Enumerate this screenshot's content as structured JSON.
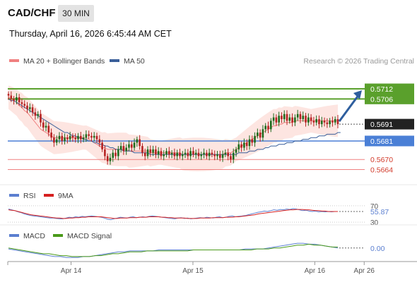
{
  "header": {
    "symbol": "CAD/CHF",
    "timeframe": "30 MIN",
    "timestamp": "Thursday, April 16, 2026 6:45:44 AM CET"
  },
  "legend": {
    "ma20": "MA 20 + Bollinger Bands",
    "ma50": "MA 50",
    "copyright": "Research © 2026 Trading Central"
  },
  "colors": {
    "ma20": "#f08080",
    "ma50": "#3a5f9a",
    "band_fill": "#fde0dc",
    "resistance": "#5aa02c",
    "pivot": "#4a7fd6",
    "support": "#f08080",
    "candle_up": "#1e6b1e",
    "candle_down": "#b52222",
    "rsi": "#5b7fd0",
    "rsi_ma": "#d62020",
    "macd": "#5b7fd0",
    "macd_signal": "#4a9a1a",
    "arrow": "#2e5e9e"
  },
  "chart_data": [
    {
      "type": "candlestick",
      "name": "price",
      "x_labels": [
        "Apr 14",
        "Apr 15",
        "Apr 16",
        "Apr 26"
      ],
      "ylim": [
        0.5655,
        0.5725
      ],
      "levels": [
        {
          "label": "0.5712",
          "value": 0.5712,
          "kind": "resistance"
        },
        {
          "label": "0.5706",
          "value": 0.5706,
          "kind": "resistance"
        },
        {
          "label": "0.5691",
          "value": 0.5691,
          "kind": "last"
        },
        {
          "label": "0.5681",
          "value": 0.5681,
          "kind": "pivot"
        },
        {
          "label": "0.5670",
          "value": 0.567,
          "kind": "support"
        },
        {
          "label": "0.5664",
          "value": 0.5664,
          "kind": "support"
        }
      ],
      "close": [
        0.5708,
        0.5706,
        0.5705,
        0.5707,
        0.5704,
        0.5703,
        0.5702,
        0.57,
        0.5701,
        0.5698,
        0.5696,
        0.5697,
        0.5692,
        0.5689,
        0.569,
        0.5686,
        0.5683,
        0.568,
        0.5682,
        0.5684,
        0.5681,
        0.5683,
        0.5682,
        0.5684,
        0.5683,
        0.5682,
        0.5684,
        0.5682,
        0.5683,
        0.5685,
        0.5684,
        0.5683,
        0.5684,
        0.5682,
        0.568,
        0.5676,
        0.5672,
        0.5669,
        0.5671,
        0.5674,
        0.5672,
        0.5676,
        0.5678,
        0.5675,
        0.5677,
        0.5679,
        0.5677,
        0.568,
        0.5682,
        0.5678,
        0.5674,
        0.5672,
        0.5676,
        0.5674,
        0.5676,
        0.5673,
        0.5675,
        0.5672,
        0.5673,
        0.5675,
        0.5673,
        0.5674,
        0.5672,
        0.5674,
        0.5672,
        0.5673,
        0.5674,
        0.5672,
        0.5675,
        0.5673,
        0.5674,
        0.5672,
        0.5673,
        0.5674,
        0.5672,
        0.5674,
        0.5673,
        0.5672,
        0.5673,
        0.5671,
        0.5673,
        0.5674,
        0.5672,
        0.567,
        0.5674,
        0.5676,
        0.5679,
        0.5677,
        0.568,
        0.5678,
        0.5682,
        0.568,
        0.5684,
        0.5686,
        0.5683,
        0.5688,
        0.569,
        0.5688,
        0.5693,
        0.5695,
        0.5692,
        0.5696,
        0.5694,
        0.5697,
        0.5693,
        0.5695,
        0.5692,
        0.5695,
        0.5697,
        0.5694,
        0.5696,
        0.5692,
        0.5695,
        0.5693,
        0.5692,
        0.5694,
        0.5691,
        0.5693,
        0.5692,
        0.5691,
        0.5693,
        0.5692,
        0.5694,
        0.5691
      ],
      "ma20": [
        0.5707,
        0.5706,
        0.5705,
        0.5704,
        0.5702,
        0.5701,
        0.5699,
        0.5698,
        0.5696,
        0.5694,
        0.5692,
        0.569,
        0.5688,
        0.5687,
        0.5686,
        0.5685,
        0.5684,
        0.5683,
        0.5683,
        0.5683,
        0.5683,
        0.5683,
        0.5683,
        0.5683,
        0.5683,
        0.5683,
        0.5683,
        0.5683,
        0.5683,
        0.5683,
        0.5682,
        0.5681,
        0.568,
        0.5679,
        0.5678,
        0.5677,
        0.5677,
        0.5676,
        0.5676,
        0.5676,
        0.5676,
        0.5676,
        0.5676,
        0.5676,
        0.5676,
        0.5675,
        0.5675,
        0.5675,
        0.5675,
        0.5675,
        0.5675,
        0.5675,
        0.5675,
        0.5674,
        0.5674,
        0.5674,
        0.5674,
        0.5674,
        0.5674,
        0.5674,
        0.5674,
        0.5674,
        0.5674,
        0.5674,
        0.5674,
        0.5673,
        0.5673,
        0.5673,
        0.5673,
        0.5673,
        0.5673,
        0.5673,
        0.5673,
        0.5673,
        0.5673,
        0.5673,
        0.5673,
        0.5673,
        0.5673,
        0.5673,
        0.5673,
        0.5674,
        0.5674,
        0.5674,
        0.5675,
        0.5676,
        0.5677,
        0.5678,
        0.5679,
        0.568,
        0.5681,
        0.5682,
        0.5683,
        0.5684,
        0.5685,
        0.5686,
        0.5687,
        0.5688,
        0.5689,
        0.569,
        0.569,
        0.5691,
        0.5691,
        0.5692,
        0.5692,
        0.5692,
        0.5692,
        0.5693,
        0.5693,
        0.5693,
        0.5693,
        0.5693,
        0.5693,
        0.5693,
        0.5693,
        0.5693,
        0.5693,
        0.5693,
        0.5693,
        0.5693,
        0.5693,
        0.5693,
        0.5693,
        0.5693
      ],
      "ma50": [
        0.5706,
        0.5705,
        0.5705,
        0.5704,
        0.5703,
        0.5702,
        0.5701,
        0.57,
        0.5699,
        0.5698,
        0.5697,
        0.5696,
        0.5695,
        0.5694,
        0.5693,
        0.5692,
        0.5691,
        0.569,
        0.5689,
        0.5688,
        0.5687,
        0.5686,
        0.5686,
        0.5685,
        0.5684,
        0.5684,
        0.5683,
        0.5683,
        0.5682,
        0.5682,
        0.5681,
        0.5681,
        0.568,
        0.568,
        0.5679,
        0.5679,
        0.5678,
        0.5678,
        0.5677,
        0.5677,
        0.5676,
        0.5676,
        0.5676,
        0.5675,
        0.5675,
        0.5675,
        0.5675,
        0.5674,
        0.5674,
        0.5674,
        0.5674,
        0.5674,
        0.5674,
        0.5673,
        0.5673,
        0.5673,
        0.5673,
        0.5673,
        0.5673,
        0.5673,
        0.5673,
        0.5673,
        0.5673,
        0.5673,
        0.5673,
        0.5673,
        0.5673,
        0.5673,
        0.5673,
        0.5673,
        0.5673,
        0.5673,
        0.5673,
        0.5673,
        0.5673,
        0.5673,
        0.5673,
        0.5673,
        0.5673,
        0.5673,
        0.5673,
        0.5673,
        0.5673,
        0.5673,
        0.5673,
        0.5673,
        0.5674,
        0.5674,
        0.5674,
        0.5674,
        0.5675,
        0.5675,
        0.5675,
        0.5676,
        0.5676,
        0.5676,
        0.5677,
        0.5677,
        0.5678,
        0.5678,
        0.5678,
        0.5679,
        0.5679,
        0.5679,
        0.568,
        0.568,
        0.568,
        0.5681,
        0.5681,
        0.5681,
        0.5682,
        0.5682,
        0.5682,
        0.5683,
        0.5683,
        0.5683,
        0.5684,
        0.5684,
        0.5684,
        0.5685,
        0.5685,
        0.5685,
        0.5685,
        0.5686,
        0.5686
      ]
    },
    {
      "type": "line",
      "name": "RSI",
      "legend": [
        "RSI",
        "9MA"
      ],
      "ylim": [
        25,
        80
      ],
      "levels": [
        70,
        30
      ],
      "tick_labels": [
        "70",
        "30"
      ],
      "current_label": "55.87",
      "series": [
        {
          "name": "RSI",
          "values": [
            62,
            60,
            58,
            55,
            53,
            50,
            48,
            46,
            45,
            44,
            43,
            42,
            41,
            40,
            40,
            39,
            38,
            38,
            40,
            42,
            41,
            43,
            42,
            44,
            43,
            44,
            45,
            44,
            43,
            42,
            40,
            37,
            36,
            38,
            40,
            42,
            41,
            40,
            42,
            43,
            41,
            42,
            43,
            42,
            44,
            45,
            44,
            43,
            42,
            41,
            40,
            39,
            38,
            40,
            41,
            39,
            40,
            38,
            39,
            40,
            41,
            40,
            42,
            41,
            40,
            42,
            43,
            41,
            42,
            44,
            45,
            43,
            44,
            45,
            46,
            48,
            50,
            52,
            54,
            55,
            57,
            56,
            58,
            60,
            59,
            61,
            60,
            62,
            61,
            63,
            62,
            60,
            58,
            59,
            57,
            56,
            57,
            55,
            56,
            55,
            56,
            55,
            56,
            56
          ]
        },
        {
          "name": "9MA",
          "values": [
            60,
            59,
            58,
            56,
            54,
            52,
            50,
            48,
            47,
            46,
            45,
            44,
            43,
            42,
            41,
            40,
            40,
            39,
            39,
            40,
            40,
            41,
            41,
            42,
            42,
            43,
            43,
            43,
            43,
            43,
            42,
            41,
            40,
            39,
            39,
            40,
            40,
            40,
            41,
            41,
            41,
            42,
            42,
            42,
            43,
            43,
            43,
            43,
            42,
            42,
            41,
            41,
            40,
            40,
            40,
            40,
            39,
            39,
            39,
            39,
            40,
            40,
            40,
            40,
            41,
            41,
            41,
            41,
            42,
            42,
            42,
            43,
            43,
            44,
            45,
            46,
            47,
            48,
            50,
            51,
            52,
            53,
            54,
            55,
            56,
            57,
            58,
            59,
            60,
            60,
            61,
            61,
            61,
            60,
            60,
            59,
            58,
            58,
            57,
            57,
            56,
            56,
            56,
            56
          ]
        }
      ]
    },
    {
      "type": "line",
      "name": "MACD",
      "legend": [
        "MACD",
        "MACD Signal"
      ],
      "ylim": [
        -0.0012,
        0.0008
      ],
      "current_label": "0.00",
      "series": [
        {
          "name": "MACD",
          "values": [
            -0.0001,
            -0.0002,
            -0.0003,
            -0.0004,
            -0.0005,
            -0.0006,
            -0.0007,
            -0.0008,
            -0.0009,
            -0.0009,
            -0.001,
            -0.001,
            -0.001,
            -0.0009,
            -0.0009,
            -0.0008,
            -0.0007,
            -0.0006,
            -0.0005,
            -0.0004,
            -0.0004,
            -0.0003,
            -0.0003,
            -0.0003,
            -0.0003,
            -0.0003,
            -0.0002,
            -0.0002,
            -0.0002,
            -0.0002,
            -0.0002,
            -0.0002,
            -0.0002,
            -0.0002,
            -0.0002,
            -0.0002,
            -0.0002,
            -0.0002,
            -0.0002,
            -0.0002,
            -0.0002,
            -0.0001,
            -0.0001,
            -0.0001,
            -0.0001,
            0.0,
            0.0001,
            0.0002,
            0.0003,
            0.0004,
            0.0005,
            0.0005,
            0.0004,
            0.0004,
            0.0003,
            0.0002,
            0.0001,
            0.0
          ]
        },
        {
          "name": "MACD Signal",
          "values": [
            0.0,
            -0.0001,
            -0.0002,
            -0.0003,
            -0.0004,
            -0.0005,
            -0.0006,
            -0.0006,
            -0.0007,
            -0.0008,
            -0.0008,
            -0.0009,
            -0.0009,
            -0.0009,
            -0.0009,
            -0.0008,
            -0.0008,
            -0.0007,
            -0.0006,
            -0.0006,
            -0.0005,
            -0.0004,
            -0.0004,
            -0.0004,
            -0.0003,
            -0.0003,
            -0.0003,
            -0.0003,
            -0.0003,
            -0.0003,
            -0.0003,
            -0.0003,
            -0.0002,
            -0.0002,
            -0.0002,
            -0.0002,
            -0.0002,
            -0.0002,
            -0.0002,
            -0.0002,
            -0.0002,
            -0.0002,
            -0.0002,
            -0.0001,
            -0.0001,
            -0.0001,
            0.0,
            0.0,
            0.0001,
            0.0002,
            0.0003,
            0.0003,
            0.0004,
            0.0003,
            0.0003,
            0.0002,
            0.0001,
            0.0001
          ]
        }
      ]
    }
  ]
}
